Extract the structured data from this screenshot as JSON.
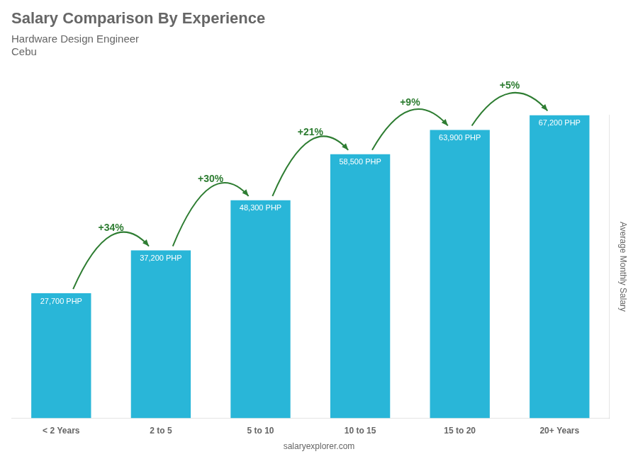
{
  "chart_data": {
    "type": "bar",
    "title": "Salary Comparison By Experience",
    "subtitle": "Hardware Design Engineer",
    "location": "Cebu",
    "ylabel": "Average Monthly Salary",
    "categories": [
      "< 2 Years",
      "2 to 5",
      "5 to 10",
      "10 to 15",
      "15 to 20",
      "20+ Years"
    ],
    "values": [
      27700,
      37200,
      48300,
      58500,
      63900,
      67200
    ],
    "value_labels": [
      "27,700 PHP",
      "37,200 PHP",
      "48,300 PHP",
      "58,500 PHP",
      "63,900 PHP",
      "67,200 PHP"
    ],
    "data_labels": true,
    "color": "#29b6d8",
    "ylim": [
      0,
      67200
    ],
    "grid": false,
    "tick_labels": "x",
    "annotations": [
      "+34%",
      "+30%",
      "+21%",
      "+9%",
      "+5%"
    ],
    "watermark": "salaryexplorer.com"
  }
}
